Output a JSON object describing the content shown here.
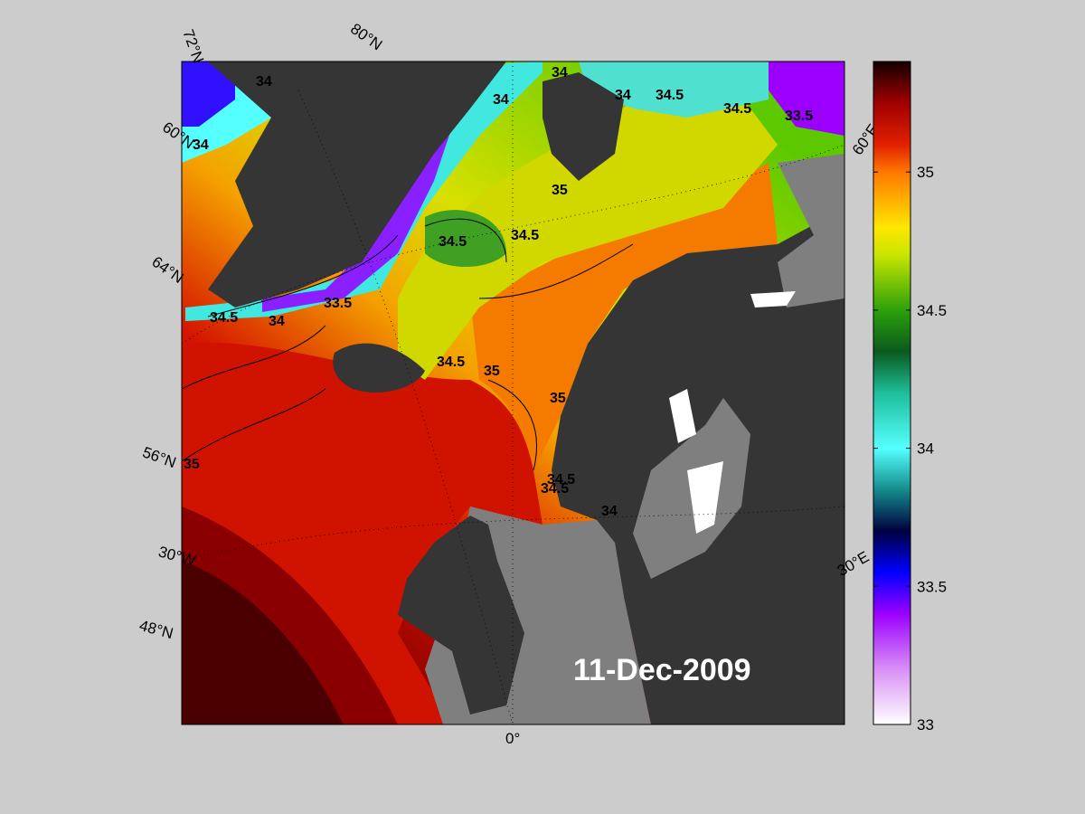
{
  "map": {
    "date": "11-Dec-2009",
    "variable_colors": {
      "land": "#353535",
      "ice": "#7f7f7f",
      "contour_line": "#000000"
    },
    "lat_labels": [
      {
        "text": "72°N"
      },
      {
        "text": "60°N"
      },
      {
        "text": "64°N"
      },
      {
        "text": "56°N"
      },
      {
        "text": "30°W"
      },
      {
        "text": "48°N"
      }
    ],
    "lon_labels": [
      {
        "text": "80°N"
      },
      {
        "text": "60°E"
      },
      {
        "text": "30°E"
      },
      {
        "text": "0°"
      }
    ],
    "contour_labels": [
      "34",
      "34",
      "34",
      "34.5",
      "34.5",
      "33.5",
      "34",
      "34.5",
      "34",
      "34.5",
      "34",
      "33.5",
      "34.5",
      "34.5",
      "35",
      "34.5",
      "35",
      "35",
      "35",
      "34.5",
      "34"
    ]
  },
  "colorbar": {
    "min": 33,
    "max": 35.4,
    "ticks": [
      33,
      33.5,
      34,
      34.5,
      35
    ],
    "tick_labels": [
      "33",
      "33.5",
      "34",
      "34.5",
      "35"
    ],
    "stops": [
      {
        "v": 33.0,
        "c": "#ffffff"
      },
      {
        "v": 33.2,
        "c": "#d890f5"
      },
      {
        "v": 33.4,
        "c": "#9b00ff"
      },
      {
        "v": 33.55,
        "c": "#0000ff"
      },
      {
        "v": 33.7,
        "c": "#000040"
      },
      {
        "v": 33.85,
        "c": "#148c8c"
      },
      {
        "v": 34.0,
        "c": "#55ffff"
      },
      {
        "v": 34.2,
        "c": "#1ebe9b"
      },
      {
        "v": 34.35,
        "c": "#0a5a1e"
      },
      {
        "v": 34.5,
        "c": "#2da00a"
      },
      {
        "v": 34.7,
        "c": "#c8e600"
      },
      {
        "v": 34.8,
        "c": "#ffe600"
      },
      {
        "v": 35.0,
        "c": "#ff7800"
      },
      {
        "v": 35.1,
        "c": "#e02000"
      },
      {
        "v": 35.25,
        "c": "#a00000"
      },
      {
        "v": 35.4,
        "c": "#140000"
      }
    ]
  }
}
